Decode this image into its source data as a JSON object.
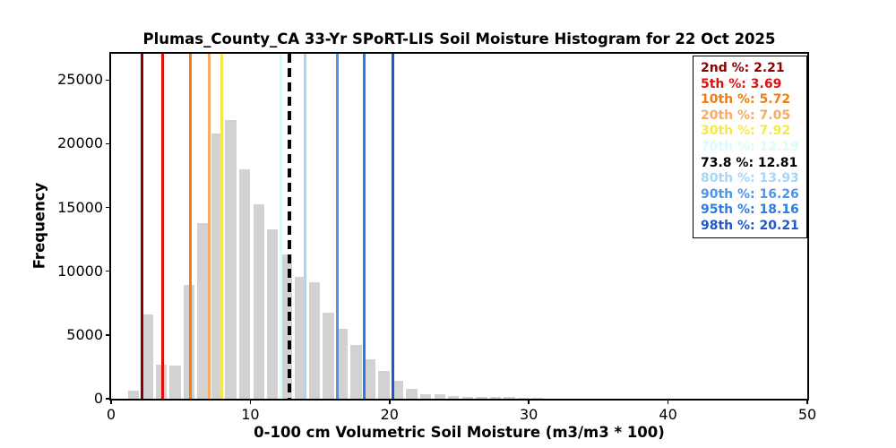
{
  "chart_data": {
    "type": "bar",
    "subtype": "histogram",
    "title": "Plumas_County_CA 33-Yr SPoRT-LIS Soil Moisture Histogram for 22 Oct 2025",
    "xlabel": "0-100 cm Volumetric Soil Moisture (m3/m3 * 100)",
    "ylabel": "Frequency",
    "xlim": [
      0,
      50
    ],
    "ylim": [
      0,
      27060
    ],
    "x_ticks": [
      0,
      10,
      20,
      30,
      40,
      50
    ],
    "y_ticks": [
      0,
      5000,
      10000,
      15000,
      20000,
      25000
    ],
    "grid": false,
    "legend_position": "upper right",
    "bar_color": "#d2d2d2",
    "bin_width": 0.8,
    "bin_left_edges": [
      1.2,
      2.2,
      3.2,
      4.2,
      5.2,
      6.2,
      7.2,
      8.2,
      9.2,
      10.2,
      11.2,
      12.2,
      13.2,
      14.2,
      15.2,
      16.2,
      17.2,
      18.2,
      19.2,
      20.2,
      21.2,
      22.2,
      23.2,
      24.2,
      25.2,
      26.2,
      27.2,
      28.2,
      29.2,
      30.2
    ],
    "counts": [
      630,
      6620,
      2700,
      2580,
      8900,
      13800,
      20800,
      21830,
      17980,
      15270,
      13260,
      11330,
      9560,
      9130,
      6720,
      5500,
      4250,
      3100,
      2170,
      1410,
      740,
      370,
      330,
      230,
      150,
      120,
      130,
      130,
      70,
      60
    ],
    "percentile_lines": [
      {
        "label": "2nd %",
        "value": 2.21,
        "value_text": "2.21",
        "color": "#8b0000",
        "dashed": false,
        "emphasis": false
      },
      {
        "label": "5th %",
        "value": 3.69,
        "value_text": "3.69",
        "color": "#e31010",
        "dashed": false,
        "emphasis": false
      },
      {
        "label": "10th %",
        "value": 5.72,
        "value_text": "5.72",
        "color": "#ee7f10",
        "dashed": false,
        "emphasis": false
      },
      {
        "label": "20th %",
        "value": 7.05,
        "value_text": "7.05",
        "color": "#f6ab67",
        "dashed": false,
        "emphasis": false
      },
      {
        "label": "30th %",
        "value": 7.92,
        "value_text": "7.92",
        "color": "#f5e94a",
        "dashed": false,
        "emphasis": false
      },
      {
        "label": "70th %",
        "value": 12.19,
        "value_text": "12.19",
        "color": "#ddfbfb",
        "dashed": false,
        "emphasis": false
      },
      {
        "label": "73.8 %",
        "value": 12.81,
        "value_text": "12.81",
        "color": "#000000",
        "dashed": true,
        "emphasis": true
      },
      {
        "label": "80th %",
        "value": 13.93,
        "value_text": "13.93",
        "color": "#a8d6f5",
        "dashed": false,
        "emphasis": false
      },
      {
        "label": "90th %",
        "value": 16.26,
        "value_text": "16.26",
        "color": "#4d96e8",
        "dashed": false,
        "emphasis": false
      },
      {
        "label": "95th %",
        "value": 18.16,
        "value_text": "18.16",
        "color": "#2d7ce4",
        "dashed": false,
        "emphasis": false
      },
      {
        "label": "98th %",
        "value": 20.21,
        "value_text": "20.21",
        "color": "#2158c8",
        "dashed": false,
        "emphasis": false
      }
    ]
  },
  "legend": {
    "separator": ": "
  },
  "style": {
    "background": "#ffffff",
    "axis_color": "#000000",
    "tick_label_color": "#000000"
  }
}
